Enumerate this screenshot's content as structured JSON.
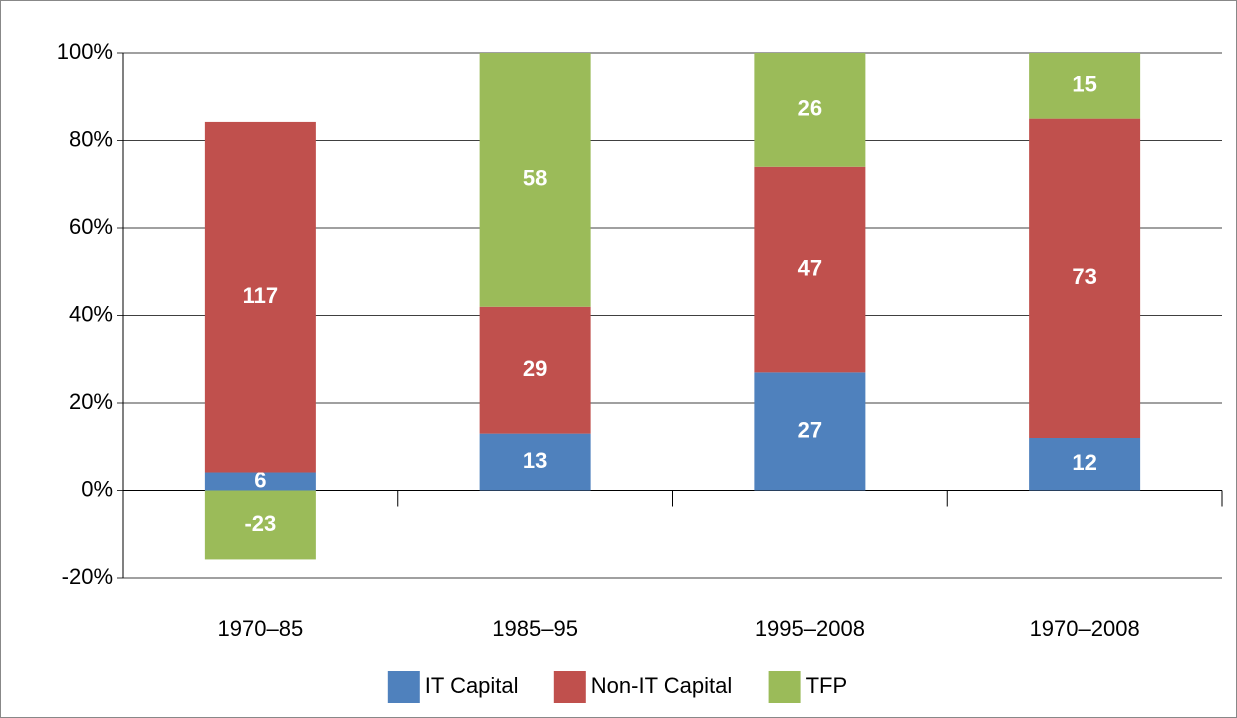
{
  "chart_data": {
    "type": "bar",
    "stack": "percent",
    "categories": [
      "1970–85",
      "1985–95",
      "1995–2008",
      "1970–2008"
    ],
    "series": [
      {
        "name": "IT Capital",
        "color": "#4f81bd",
        "values": [
          6,
          13,
          27,
          12
        ]
      },
      {
        "name": "Non-IT Capital",
        "color": "#c0504d",
        "values": [
          117,
          29,
          47,
          73
        ]
      },
      {
        "name": "TFP",
        "color": "#9bbb59",
        "values": [
          -23,
          58,
          26,
          15
        ]
      }
    ],
    "ylim": [
      -20,
      100
    ],
    "yticks": [
      {
        "value": -20,
        "label": "-20%"
      },
      {
        "value": 0,
        "label": "0%"
      },
      {
        "value": 20,
        "label": "20%"
      },
      {
        "value": 40,
        "label": "40%"
      },
      {
        "value": 60,
        "label": "60%"
      },
      {
        "value": 80,
        "label": "80%"
      },
      {
        "value": 100,
        "label": "100%"
      }
    ],
    "grid": true,
    "legend": "bottom"
  }
}
